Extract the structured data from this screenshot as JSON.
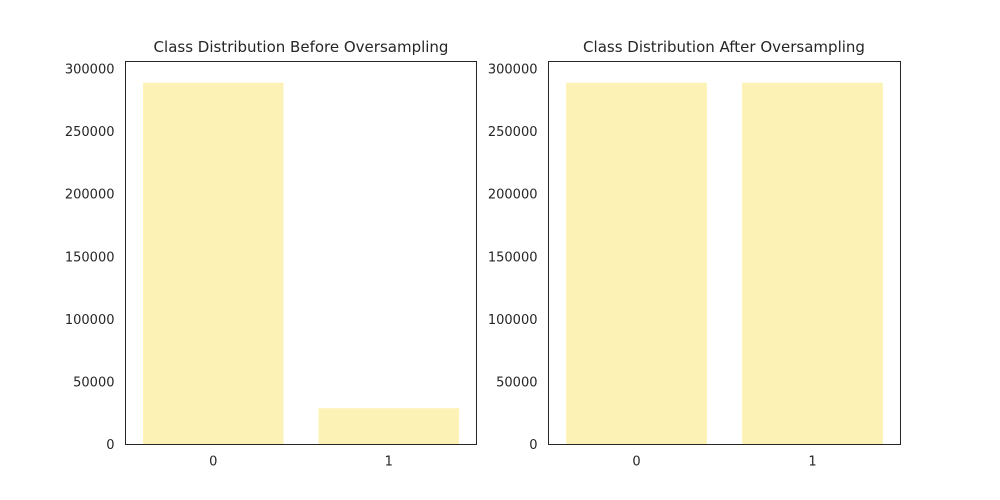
{
  "chart_data": [
    {
      "type": "bar",
      "title": "Class Distribution Before Oversampling",
      "categories": [
        "0",
        "1"
      ],
      "values": [
        289000,
        29000
      ],
      "xlabel": "",
      "ylabel": "",
      "ylim": [
        0,
        306000
      ],
      "yticks": [
        0,
        50000,
        100000,
        150000,
        200000,
        250000,
        300000
      ],
      "bar_color": "#fdf2b5",
      "grid": false
    },
    {
      "type": "bar",
      "title": "Class Distribution After Oversampling",
      "categories": [
        "0",
        "1"
      ],
      "values": [
        289000,
        289000
      ],
      "xlabel": "",
      "ylabel": "",
      "ylim": [
        0,
        306000
      ],
      "yticks": [
        0,
        50000,
        100000,
        150000,
        200000,
        250000,
        300000
      ],
      "bar_color": "#fdf2b5",
      "grid": false
    }
  ]
}
